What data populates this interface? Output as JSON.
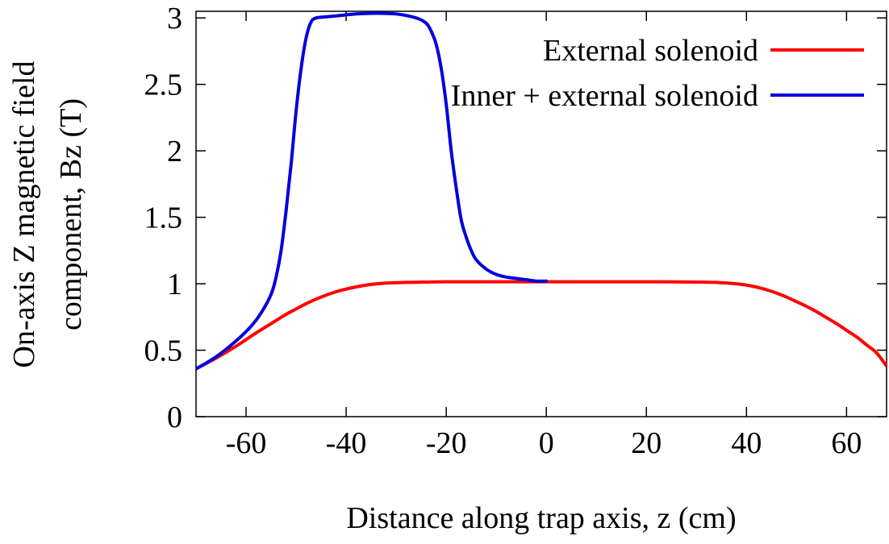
{
  "chart_data": {
    "type": "line",
    "title": "",
    "xlabel": "Distance along trap axis, z (cm)",
    "ylabel_lines": [
      "On-axis Z magnetic field",
      "component, Bz (T)"
    ],
    "xlim": [
      -70,
      68
    ],
    "ylim": [
      0,
      3.05
    ],
    "xticks": [
      {
        "value": -60,
        "label": "-60"
      },
      {
        "value": -40,
        "label": "-40"
      },
      {
        "value": -20,
        "label": "-20"
      },
      {
        "value": 0,
        "label": "0"
      },
      {
        "value": 20,
        "label": "20"
      },
      {
        "value": 40,
        "label": "40"
      },
      {
        "value": 60,
        "label": "60"
      }
    ],
    "yticks": [
      {
        "value": 0,
        "label": "0"
      },
      {
        "value": 0.5,
        "label": "0.5"
      },
      {
        "value": 1,
        "label": "1"
      },
      {
        "value": 1.5,
        "label": "1.5"
      },
      {
        "value": 2,
        "label": "2"
      },
      {
        "value": 2.5,
        "label": "2.5"
      },
      {
        "value": 3,
        "label": "3"
      }
    ],
    "grid": false,
    "legend_position": "top-right",
    "series": [
      {
        "name": "External solenoid",
        "color": "#ff0000",
        "x": [
          -70,
          -66,
          -62,
          -58,
          -55,
          -52,
          -50,
          -48,
          -45,
          -42,
          -40,
          -36,
          -32,
          -28,
          -24,
          -20,
          -10,
          0,
          10,
          20,
          30,
          34,
          38,
          40,
          42,
          44,
          46,
          48,
          50,
          52,
          54,
          56,
          58,
          60,
          62,
          64,
          66,
          68
        ],
        "y": [
          0.36,
          0.44,
          0.53,
          0.63,
          0.7,
          0.77,
          0.81,
          0.85,
          0.9,
          0.94,
          0.96,
          0.99,
          1.005,
          1.01,
          1.013,
          1.015,
          1.015,
          1.015,
          1.015,
          1.015,
          1.013,
          1.01,
          1.0,
          0.99,
          0.975,
          0.955,
          0.93,
          0.9,
          0.865,
          0.83,
          0.79,
          0.745,
          0.7,
          0.65,
          0.6,
          0.54,
          0.48,
          0.38
        ]
      },
      {
        "name": "Inner + external solenoid",
        "color": "#0000dd",
        "x": [
          -70,
          -66,
          -62,
          -59,
          -57,
          -55,
          -54,
          -53,
          -52,
          -51,
          -50,
          -49,
          -48,
          -47,
          -46,
          -45,
          -42,
          -38,
          -34,
          -30,
          -26,
          -24,
          -23,
          -22,
          -21,
          -20,
          -19,
          -18,
          -17,
          -16,
          -15,
          -14,
          -12,
          -10,
          -8,
          -6,
          -4,
          -2,
          0
        ],
        "y": [
          0.36,
          0.45,
          0.57,
          0.68,
          0.78,
          0.92,
          1.05,
          1.25,
          1.55,
          1.9,
          2.3,
          2.62,
          2.85,
          2.97,
          3.0,
          3.005,
          3.015,
          3.03,
          3.035,
          3.03,
          3.0,
          2.96,
          2.9,
          2.8,
          2.62,
          2.35,
          2.0,
          1.72,
          1.48,
          1.35,
          1.25,
          1.18,
          1.11,
          1.07,
          1.05,
          1.04,
          1.03,
          1.02,
          1.02
        ]
      }
    ]
  }
}
